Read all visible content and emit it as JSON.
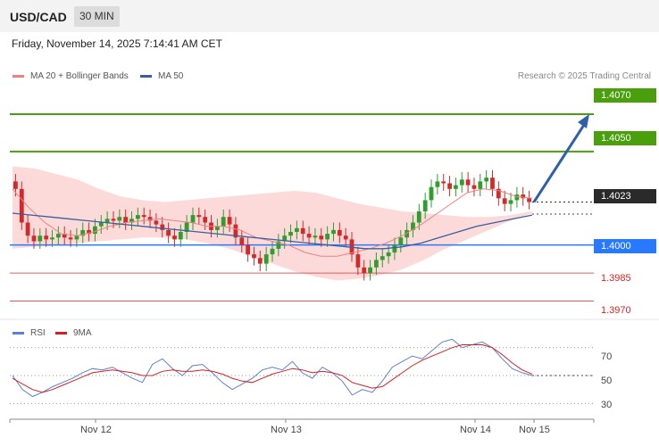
{
  "header": {
    "symbol": "USD/CAD",
    "timeframe": "30 MIN"
  },
  "datetime": "Friday, November 14, 2025 7:14:41 AM CET",
  "legend": {
    "ma20_label": "MA 20 + Bollinger Bands",
    "ma50_label": "MA 50",
    "rsi_label": "RSI",
    "rsi_ma_label": "9MA"
  },
  "credit": "Research © 2025 Trading Central",
  "colors": {
    "resistance": "#4aa00c",
    "support_blue": "#2979ff",
    "support_red": "#e65a5a",
    "current": "#2a2a2a",
    "ma20": "#f08080",
    "ma50": "#3a5f9f",
    "bollinger_fill": "#fcd3d3",
    "bull_candle": "#2e9e2e",
    "bear_candle": "#d22a2a",
    "rsi": "#5b7fd6",
    "rsi_ma": "#d62020",
    "arrow": "#2f5fa8"
  },
  "chart_data": {
    "type": "candlestick",
    "symbol": "USD/CAD",
    "timeframe": "30 MIN",
    "x_labels": [
      "Nov 12",
      "Nov 13",
      "Nov 14",
      "Nov 15"
    ],
    "y_range": [
      1.3965,
      1.408
    ],
    "price_levels": [
      {
        "value": 1.407,
        "label": "1.4070",
        "kind": "resistance"
      },
      {
        "value": 1.405,
        "label": "1.4050",
        "kind": "resistance"
      },
      {
        "value": 1.4023,
        "label": "1.4023",
        "kind": "current"
      },
      {
        "value": 1.4,
        "label": "1.4000",
        "kind": "support"
      },
      {
        "value": 1.3985,
        "label": "1.3985",
        "kind": "support"
      },
      {
        "value": 1.397,
        "label": "1.3970",
        "kind": "support"
      }
    ],
    "close_series": [
      1.403,
      1.4012,
      1.4005,
      1.4002,
      1.4005,
      1.4003,
      1.4004,
      1.4006,
      1.4004,
      1.4003,
      1.4005,
      1.4008,
      1.4006,
      1.401,
      1.4012,
      1.4014,
      1.4013,
      1.4015,
      1.4012,
      1.4014,
      1.4016,
      1.4015,
      1.4013,
      1.4011,
      1.4008,
      1.4005,
      1.4003,
      1.4007,
      1.4012,
      1.4016,
      1.4015,
      1.4012,
      1.4008,
      1.401,
      1.4015,
      1.4011,
      1.4004,
      1.4,
      1.3995,
      1.3993,
      1.399,
      1.3995,
      1.3998,
      1.4002,
      1.4005,
      1.4007,
      1.4009,
      1.4006,
      1.4004,
      1.4005,
      1.4003,
      1.4006,
      1.4008,
      1.4005,
      1.4003,
      1.3995,
      1.3988,
      1.3985,
      1.3988,
      1.3992,
      1.3994,
      1.3996,
      1.4,
      1.4004,
      1.4008,
      1.4012,
      1.4018,
      1.4024,
      1.4031,
      1.4034,
      1.4033,
      1.403,
      1.4032,
      1.4035,
      1.4032,
      1.403,
      1.4034,
      1.4036,
      1.403,
      1.4025,
      1.4022,
      1.4024,
      1.4027,
      1.4025,
      1.4023
    ],
    "bollinger_upper": [
      1.4042,
      1.4041,
      1.4038,
      1.4035,
      1.403,
      1.4026,
      1.4024,
      1.4023,
      1.4024,
      1.4025,
      1.4026,
      1.4027,
      1.4028,
      1.4029,
      1.4028,
      1.4025,
      1.4022,
      1.402,
      1.4018,
      1.4017,
      1.4016,
      1.4015,
      1.4015,
      1.4016,
      1.4018
    ],
    "bollinger_lower": [
      1.3998,
      1.3999,
      1.4,
      1.4001,
      1.4002,
      1.4003,
      1.4004,
      1.4004,
      1.4003,
      1.4001,
      1.3998,
      1.3994,
      1.399,
      1.3986,
      1.3983,
      1.3981,
      1.3982,
      1.3984,
      1.3987,
      1.3992,
      1.3998,
      1.4003,
      1.4008,
      1.4013,
      1.4017
    ],
    "ma20": [
      1.403,
      1.402,
      1.4012,
      1.4006,
      1.4005,
      1.4007,
      1.401,
      1.4012,
      1.4013,
      1.4014,
      1.4013,
      1.4012,
      1.401,
      1.401,
      1.4008,
      1.4004,
      1.4002,
      1.4,
      1.3996,
      1.3994,
      1.3994,
      1.3996,
      1.3998,
      1.4001,
      1.4005,
      1.401,
      1.4016,
      1.4022,
      1.4028,
      1.403,
      1.4029,
      1.4026,
      1.4025
    ],
    "ma50": [
      1.4017,
      1.4016,
      1.4015,
      1.4014,
      1.4013,
      1.4012,
      1.4011,
      1.401,
      1.4009,
      1.4008,
      1.4007,
      1.4006,
      1.4005,
      1.4004,
      1.4003,
      1.4002,
      1.4001,
      1.4,
      1.3999,
      1.3998,
      1.3998,
      1.3999,
      1.4001,
      1.4004,
      1.4007,
      1.401,
      1.4012,
      1.4014,
      1.4016
    ],
    "projection": {
      "from": 1.4023,
      "to": 1.407
    },
    "rsi": {
      "ticks": [
        70,
        50,
        30
      ],
      "y_range": [
        20,
        80
      ],
      "values": [
        50,
        40,
        35,
        38,
        42,
        45,
        48,
        52,
        55,
        54,
        56,
        52,
        48,
        45,
        58,
        62,
        55,
        50,
        57,
        58,
        52,
        45,
        40,
        44,
        48,
        54,
        56,
        54,
        60,
        52,
        48,
        56,
        52,
        46,
        36,
        40,
        38,
        46,
        56,
        60,
        64,
        62,
        68,
        74,
        76,
        70,
        72,
        74,
        70,
        62,
        55,
        52,
        50
      ],
      "ma9": [
        48,
        44,
        40,
        38,
        40,
        43,
        46,
        49,
        52,
        53,
        54,
        53,
        52,
        50,
        50,
        53,
        54,
        53,
        53,
        54,
        53,
        51,
        48,
        46,
        45,
        48,
        51,
        53,
        55,
        54,
        52,
        53,
        52,
        50,
        45,
        43,
        41,
        42,
        47,
        52,
        57,
        61,
        64,
        67,
        70,
        72,
        72,
        72,
        70,
        65,
        59,
        54,
        51
      ]
    }
  }
}
